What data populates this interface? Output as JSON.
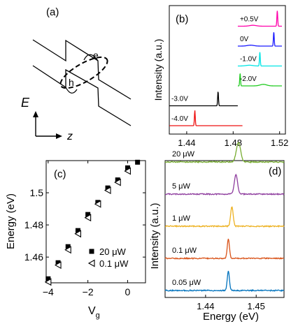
{
  "panel_a": {
    "label": "(a)",
    "electron_label": "e",
    "hole_label": "h",
    "energy_axis_label": "E",
    "z_axis_label": "z"
  },
  "chart_data": [
    {
      "panel": "(b)",
      "type": "line",
      "title": "",
      "xlabel": "",
      "ylabel": "Intensity (a.u.)",
      "xlim": [
        1.425,
        1.525
      ],
      "xticks": [
        1.44,
        1.48,
        1.52
      ],
      "grid": false,
      "series": [
        {
          "name": "+0.5V",
          "color": "#ff00aa",
          "x_start": 1.484,
          "x_end": 1.522,
          "peak_x": 1.518,
          "peak_height": 1.0,
          "broad_x": 1.497,
          "broad_height": 0.06,
          "offset": 5
        },
        {
          "name": "0V",
          "color": "#1a1aff",
          "x_start": 1.484,
          "x_end": 1.522,
          "peak_x": 1.515,
          "peak_height": 0.9,
          "broad_x": 1.495,
          "broad_height": 0.06,
          "offset": 4
        },
        {
          "name": "-1.0V",
          "color": "#00e5e5",
          "x_start": 1.484,
          "x_end": 1.522,
          "peak_x": 1.503,
          "peak_height": 0.9,
          "broad_x": 1.494,
          "broad_height": 0.05,
          "offset": 3
        },
        {
          "name": "-2.0V",
          "color": "#22cc22",
          "x_start": 1.484,
          "x_end": 1.522,
          "peak_x": 1.486,
          "peak_height": 0.8,
          "broad_x": 1.506,
          "broad_height": 0.1,
          "offset": 2
        },
        {
          "name": "-3.0V",
          "color": "#000000",
          "x_start": 1.425,
          "x_end": 1.484,
          "peak_x": 1.467,
          "peak_height": 0.95,
          "broad_x": 1.45,
          "broad_height": 0.0,
          "offset": 1
        },
        {
          "name": "-4.0V",
          "color": "#ee1111",
          "x_start": 1.425,
          "x_end": 1.488,
          "peak_x": 1.447,
          "peak_height": 1.0,
          "broad_x": 1.465,
          "broad_height": 0.0,
          "offset": 0
        }
      ]
    },
    {
      "panel": "(c)",
      "type": "scatter",
      "title": "",
      "xlabel": "V",
      "xlabel_sub": "g",
      "ylabel": "Energy (eV)",
      "xlim": [
        -4.1,
        0.9
      ],
      "ylim": [
        1.444,
        1.52
      ],
      "xticks": [
        -4,
        -2,
        0
      ],
      "yticks": [
        1.46,
        1.48,
        1.5
      ],
      "grid": false,
      "legend_position": "bottom-right",
      "series": [
        {
          "name": "20 μW",
          "marker": "filled-square",
          "x": [
            -4.0,
            -3.5,
            -3.0,
            -2.5,
            -2.0,
            -1.5,
            -1.0,
            -0.5,
            0.0,
            0.5
          ],
          "y": [
            1.4465,
            1.4565,
            1.4665,
            1.4765,
            1.4865,
            1.494,
            1.503,
            1.508,
            1.5155,
            1.519
          ]
        },
        {
          "name": "0.1 μW",
          "marker": "open-triangle-left",
          "x": [
            -4.0,
            -3.5,
            -3.0,
            -2.5,
            -2.0,
            -1.5,
            -1.0,
            -0.5,
            0.0
          ],
          "y": [
            1.4445,
            1.455,
            1.4645,
            1.4745,
            1.4845,
            1.493,
            1.5015,
            1.5065,
            1.5135
          ]
        }
      ]
    },
    {
      "panel": "(d)",
      "type": "line",
      "title": "",
      "xlabel": "Energy (eV)",
      "ylabel": "Intensity (a.u.)",
      "xlim": [
        1.432,
        1.4555
      ],
      "xticks": [
        1.44,
        1.45
      ],
      "grid": false,
      "series": [
        {
          "name": "20 μW",
          "color": "#77ac30",
          "peak_x": 1.4465,
          "peak_width": 0.0006,
          "offset": 4
        },
        {
          "name": "5 μW",
          "color": "#8e3d9e",
          "peak_x": 1.446,
          "peak_width": 0.00045,
          "offset": 3
        },
        {
          "name": "1 μW",
          "color": "#edb120",
          "peak_x": 1.4452,
          "peak_width": 0.00035,
          "offset": 2
        },
        {
          "name": "0.1 μW",
          "color": "#d95319",
          "peak_x": 1.4445,
          "peak_width": 0.0003,
          "offset": 1
        },
        {
          "name": "0.05 μW",
          "color": "#0072bd",
          "peak_x": 1.4445,
          "peak_width": 0.0003,
          "offset": 0
        }
      ]
    }
  ]
}
